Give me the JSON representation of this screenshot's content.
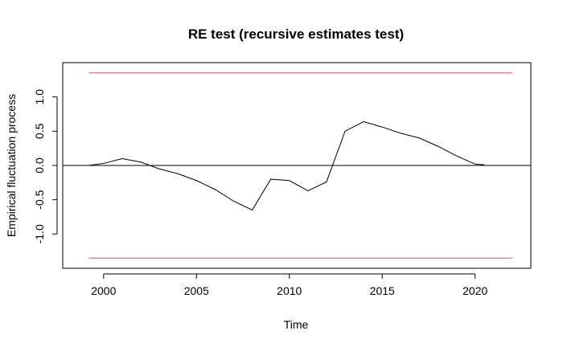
{
  "chart_data": {
    "type": "line",
    "title": "RE test (recursive estimates test)",
    "xlabel": "Time",
    "ylabel": "Empirical fluctuation process",
    "xlim": [
      1997.8,
      2023.0
    ],
    "ylim": [
      -1.5,
      1.5
    ],
    "x_ticks": [
      2000,
      2005,
      2010,
      2015,
      2020
    ],
    "x_tick_labels": [
      "2000",
      "2005",
      "2010",
      "2015",
      "2020"
    ],
    "y_ticks": [
      -1.0,
      -0.5,
      0.0,
      0.5,
      1.0
    ],
    "y_tick_labels": [
      "-1.0",
      "-0.5",
      "0.0",
      "0.5",
      "1.0"
    ],
    "grid": false,
    "legend": "none",
    "series": [
      {
        "color": "#000000",
        "x": [
          1999.2,
          2000,
          2001,
          2002,
          2003,
          2004,
          2005,
          2006,
          2007,
          2008,
          2009,
          2010,
          2011,
          2012,
          2013,
          2014,
          2015,
          2016,
          2017,
          2018,
          2019,
          2020,
          2020.5
        ],
        "y": [
          0.0,
          0.03,
          0.1,
          0.05,
          -0.05,
          -0.12,
          -0.22,
          -0.35,
          -0.52,
          -0.65,
          -0.2,
          -0.22,
          -0.37,
          -0.24,
          0.5,
          0.64,
          0.56,
          0.47,
          0.4,
          0.28,
          0.14,
          0.02,
          0.01
        ]
      }
    ],
    "reference_lines": [
      {
        "y": 0.0,
        "color": "#000000"
      },
      {
        "y": 1.35,
        "color": "#DF536B"
      },
      {
        "y": -1.35,
        "color": "#DF536B"
      }
    ],
    "boundary_x": [
      1999.2,
      2022.0
    ]
  }
}
